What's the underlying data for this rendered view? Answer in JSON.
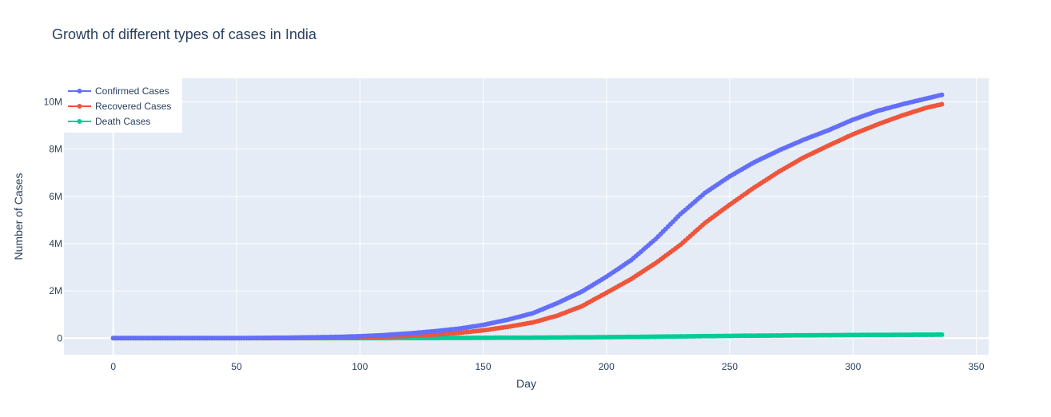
{
  "chart_data": {
    "type": "line",
    "title": "Growth of different types of cases in India",
    "xlabel": "Day",
    "ylabel": "Number of Cases",
    "xlim": [
      -20,
      355
    ],
    "ylim": [
      -700000,
      11000000
    ],
    "x_ticks": [
      0,
      50,
      100,
      150,
      200,
      250,
      300,
      350
    ],
    "x_tick_labels": [
      "0",
      "50",
      "100",
      "150",
      "200",
      "250",
      "300",
      "350"
    ],
    "y_ticks": [
      0,
      2000000,
      4000000,
      6000000,
      8000000,
      10000000
    ],
    "y_tick_labels": [
      "0",
      "2M",
      "4M",
      "6M",
      "8M",
      "10M"
    ],
    "grid": true,
    "legend_position": "top-left",
    "x_max_day": 336,
    "series": [
      {
        "name": "Confirmed Cases",
        "color": "#636efa",
        "points": [
          [
            0,
            0
          ],
          [
            50,
            3000
          ],
          [
            70,
            20000
          ],
          [
            90,
            50000
          ],
          [
            100,
            80000
          ],
          [
            110,
            130000
          ],
          [
            120,
            200000
          ],
          [
            130,
            290000
          ],
          [
            140,
            400000
          ],
          [
            150,
            560000
          ],
          [
            160,
            780000
          ],
          [
            170,
            1050000
          ],
          [
            180,
            1480000
          ],
          [
            190,
            1970000
          ],
          [
            200,
            2600000
          ],
          [
            210,
            3300000
          ],
          [
            220,
            4200000
          ],
          [
            230,
            5250000
          ],
          [
            240,
            6150000
          ],
          [
            250,
            6850000
          ],
          [
            260,
            7450000
          ],
          [
            270,
            7950000
          ],
          [
            280,
            8400000
          ],
          [
            290,
            8800000
          ],
          [
            300,
            9250000
          ],
          [
            310,
            9620000
          ],
          [
            320,
            9900000
          ],
          [
            330,
            10150000
          ],
          [
            336,
            10300000
          ]
        ]
      },
      {
        "name": "Recovered Cases",
        "color": "#ef553b",
        "points": [
          [
            0,
            0
          ],
          [
            50,
            1000
          ],
          [
            70,
            6000
          ],
          [
            90,
            20000
          ],
          [
            100,
            35000
          ],
          [
            110,
            60000
          ],
          [
            120,
            100000
          ],
          [
            130,
            150000
          ],
          [
            140,
            220000
          ],
          [
            150,
            330000
          ],
          [
            160,
            480000
          ],
          [
            170,
            660000
          ],
          [
            180,
            950000
          ],
          [
            190,
            1350000
          ],
          [
            200,
            1920000
          ],
          [
            210,
            2500000
          ],
          [
            220,
            3180000
          ],
          [
            230,
            3950000
          ],
          [
            240,
            4880000
          ],
          [
            250,
            5650000
          ],
          [
            260,
            6380000
          ],
          [
            270,
            7050000
          ],
          [
            280,
            7650000
          ],
          [
            290,
            8150000
          ],
          [
            300,
            8630000
          ],
          [
            310,
            9050000
          ],
          [
            320,
            9430000
          ],
          [
            330,
            9760000
          ],
          [
            336,
            9900000
          ]
        ]
      },
      {
        "name": "Death Cases",
        "color": "#00cc96",
        "points": [
          [
            0,
            0
          ],
          [
            50,
            100
          ],
          [
            70,
            1000
          ],
          [
            90,
            2000
          ],
          [
            100,
            3000
          ],
          [
            120,
            6000
          ],
          [
            140,
            10000
          ],
          [
            160,
            17000
          ],
          [
            180,
            27000
          ],
          [
            200,
            42000
          ],
          [
            220,
            62000
          ],
          [
            240,
            85000
          ],
          [
            260,
            105000
          ],
          [
            280,
            120000
          ],
          [
            300,
            132000
          ],
          [
            320,
            142000
          ],
          [
            336,
            148000
          ]
        ]
      }
    ]
  }
}
